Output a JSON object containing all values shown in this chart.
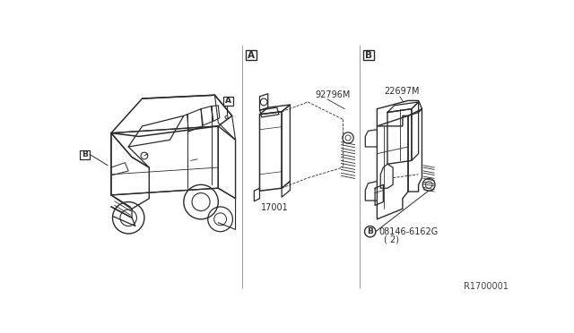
{
  "bg_color": "#ffffff",
  "line_color": "#2a2a2a",
  "diagram_ref": "R1700001",
  "section_a_label": "A",
  "section_b_label": "B",
  "part_17001_label": "17001",
  "part_92796m_label": "92796M",
  "part_22697m_label": "22697M",
  "part_08146_label": "08146-6162G",
  "part_08146_qty": "( 2)",
  "fig_width": 6.4,
  "fig_height": 3.72,
  "dpi": 100
}
